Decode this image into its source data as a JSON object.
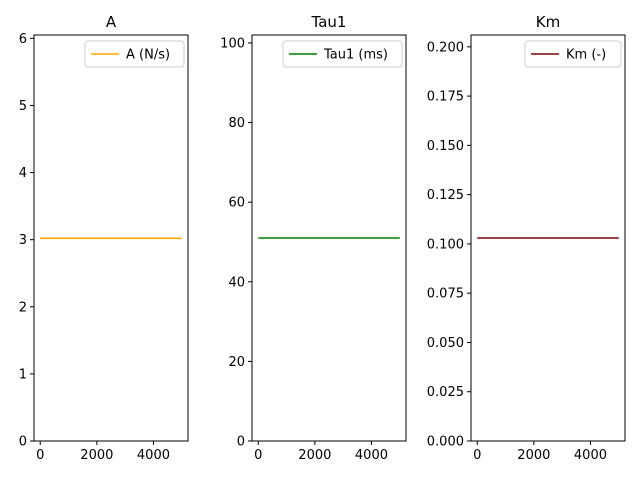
{
  "chart_data": [
    {
      "type": "line",
      "title": "A",
      "xlabel": "",
      "ylabel": "",
      "xlim": [
        -220,
        5220
      ],
      "ylim": [
        0,
        6.05
      ],
      "xticks": [
        0,
        2000,
        4000
      ],
      "xtick_labels": [
        "0",
        "2000",
        "4000"
      ],
      "yticks": [
        0,
        1,
        2,
        3,
        4,
        5,
        6
      ],
      "ytick_labels": [
        "0",
        "1",
        "2",
        "3",
        "4",
        "5",
        "6"
      ],
      "grid": false,
      "legend_position": "top-right",
      "series": [
        {
          "name": "A (N/s)",
          "color": "#ffa500",
          "x": [
            0,
            5000
          ],
          "y": [
            3.02,
            3.02
          ]
        }
      ]
    },
    {
      "type": "line",
      "title": "Tau1",
      "xlabel": "",
      "ylabel": "",
      "xlim": [
        -220,
        5220
      ],
      "ylim": [
        0,
        102
      ],
      "xticks": [
        0,
        2000,
        4000
      ],
      "xtick_labels": [
        "0",
        "2000",
        "4000"
      ],
      "yticks": [
        0,
        20,
        40,
        60,
        80,
        100
      ],
      "ytick_labels": [
        "0",
        "20",
        "40",
        "60",
        "80",
        "100"
      ],
      "grid": false,
      "legend_position": "top-right",
      "series": [
        {
          "name": "Tau1 (ms)",
          "color": "#008000",
          "x": [
            0,
            5000
          ],
          "y": [
            51,
            51
          ]
        }
      ]
    },
    {
      "type": "line",
      "title": "Km",
      "xlabel": "",
      "ylabel": "",
      "xlim": [
        -220,
        5220
      ],
      "ylim": [
        0,
        0.206
      ],
      "xticks": [
        0,
        2000,
        4000
      ],
      "xtick_labels": [
        "0",
        "2000",
        "4000"
      ],
      "yticks": [
        0,
        0.025,
        0.05,
        0.075,
        0.1,
        0.125,
        0.15,
        0.175,
        0.2
      ],
      "ytick_labels": [
        "0.000",
        "0.025",
        "0.050",
        "0.075",
        "0.100",
        "0.125",
        "0.150",
        "0.175",
        "0.200"
      ],
      "grid": false,
      "legend_position": "top-right",
      "series": [
        {
          "name": "Km (-)",
          "color": "#800000",
          "x": [
            0,
            5000
          ],
          "y": [
            0.103,
            0.103
          ]
        }
      ]
    }
  ]
}
